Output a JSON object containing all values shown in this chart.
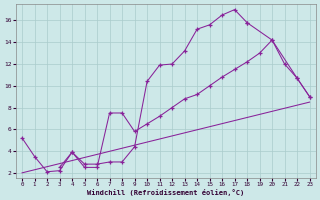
{
  "xlabel": "Windchill (Refroidissement éolien,°C)",
  "background_color": "#cde8e8",
  "grid_color": "#aacccc",
  "line_color": "#882299",
  "xlim": [
    -0.5,
    23.5
  ],
  "ylim": [
    1.5,
    17.5
  ],
  "xticks": [
    0,
    1,
    2,
    3,
    4,
    5,
    6,
    7,
    8,
    9,
    10,
    11,
    12,
    13,
    14,
    15,
    16,
    17,
    18,
    19,
    20,
    21,
    22,
    23
  ],
  "yticks": [
    2,
    4,
    6,
    8,
    10,
    12,
    14,
    16
  ],
  "curve1_x": [
    0,
    1,
    2,
    3,
    4,
    5,
    6,
    7,
    8,
    9,
    10,
    11,
    12,
    13,
    14,
    15,
    16,
    17,
    18
  ],
  "curve1_y": [
    5.2,
    3.5,
    2.1,
    2.2,
    3.9,
    2.8,
    2.8,
    3.0,
    3.0,
    4.4,
    10.4,
    11.9,
    12.0,
    13.2,
    15.2,
    15.6,
    16.5,
    17.0,
    15.8
  ],
  "curve2_x": [
    3,
    4,
    5,
    6,
    7,
    8,
    9,
    10,
    11,
    12,
    13,
    14,
    15,
    16,
    17,
    18,
    19,
    20,
    21,
    22,
    23
  ],
  "curve2_y": [
    2.5,
    3.9,
    2.5,
    2.5,
    7.5,
    7.5,
    5.8,
    6.5,
    7.2,
    8.0,
    8.8,
    9.2,
    10.0,
    10.8,
    11.5,
    12.2,
    13.0,
    14.2,
    12.0,
    10.7,
    9.0
  ],
  "curve3_x": [
    0,
    23
  ],
  "curve3_y": [
    2.0,
    8.5
  ],
  "curve4_x": [
    18,
    20,
    22,
    23
  ],
  "curve4_y": [
    15.8,
    14.2,
    10.7,
    9.0
  ]
}
